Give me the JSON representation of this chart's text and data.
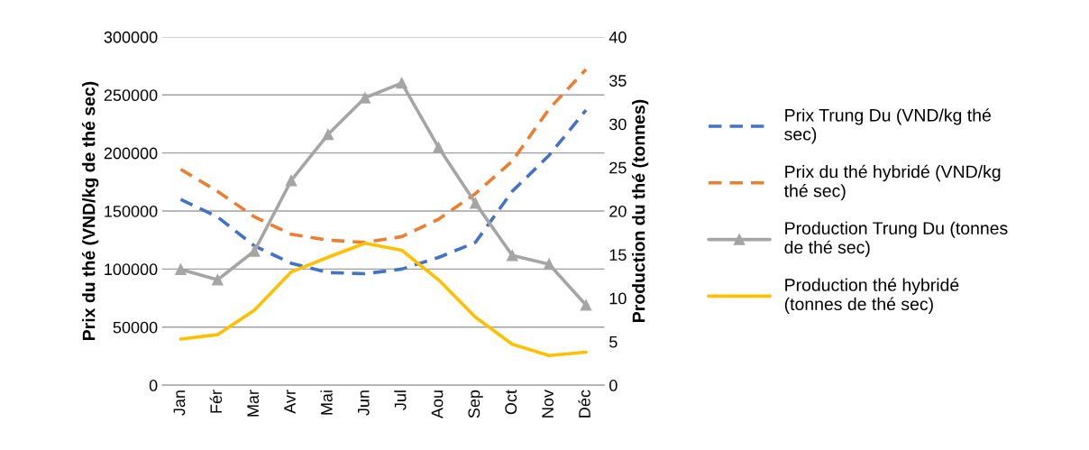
{
  "chart_data": {
    "type": "line",
    "categories": [
      "Jan",
      "Fér",
      "Mar",
      "Avr",
      "Mai",
      "Jun",
      "Jul",
      "Aou",
      "Sep",
      "Oct",
      "Nov",
      "Déc"
    ],
    "ylabel": "Prix du thé (VND/kg de thé sec)",
    "y2label": "Production du thé (tonnes)",
    "ylim": [
      0,
      300000
    ],
    "yticks": [
      0,
      50000,
      100000,
      150000,
      200000,
      250000,
      300000
    ],
    "y2lim": [
      0,
      40
    ],
    "y2ticks": [
      0,
      5,
      10,
      15,
      20,
      25,
      30,
      35,
      40
    ],
    "grid": "y",
    "legend": "right",
    "series": [
      {
        "name": "Prix Trung Du (VND/kg thé\nsec)",
        "color": "#4472c4",
        "line_style": "dashed",
        "marker": "none",
        "values": [
          160000,
          145000,
          120000,
          105000,
          97000,
          96000,
          100000,
          110000,
          123000,
          167000,
          198000,
          237000
        ]
      },
      {
        "name": "Prix du thé hybridé (VND/kg\nthé sec)",
        "color": "#ed7d31",
        "line_style": "dashed",
        "marker": "none",
        "values": [
          186000,
          167000,
          145000,
          130000,
          125000,
          123000,
          128000,
          143000,
          165000,
          193000,
          238000,
          272000
        ]
      },
      {
        "name": "Production Trung Du (tonnes\nde thé sec)",
        "color": "#a5a5a5",
        "line_style": "solid",
        "marker": "triangle",
        "axis": "y2",
        "values": [
          13.3,
          12.1,
          15.4,
          23.5,
          28.8,
          33.0,
          34.7,
          27.3,
          20.9,
          14.9,
          13.9,
          9.2
        ]
      },
      {
        "name": "Production thé hybridé\n(tonnes de thé sec)",
        "color": "#ffc000",
        "line_style": "solid",
        "marker": "none",
        "axis": "y2",
        "values": [
          5.3,
          5.8,
          8.6,
          13.0,
          14.7,
          16.3,
          15.5,
          12.1,
          7.8,
          4.7,
          3.4,
          3.8
        ]
      }
    ]
  }
}
